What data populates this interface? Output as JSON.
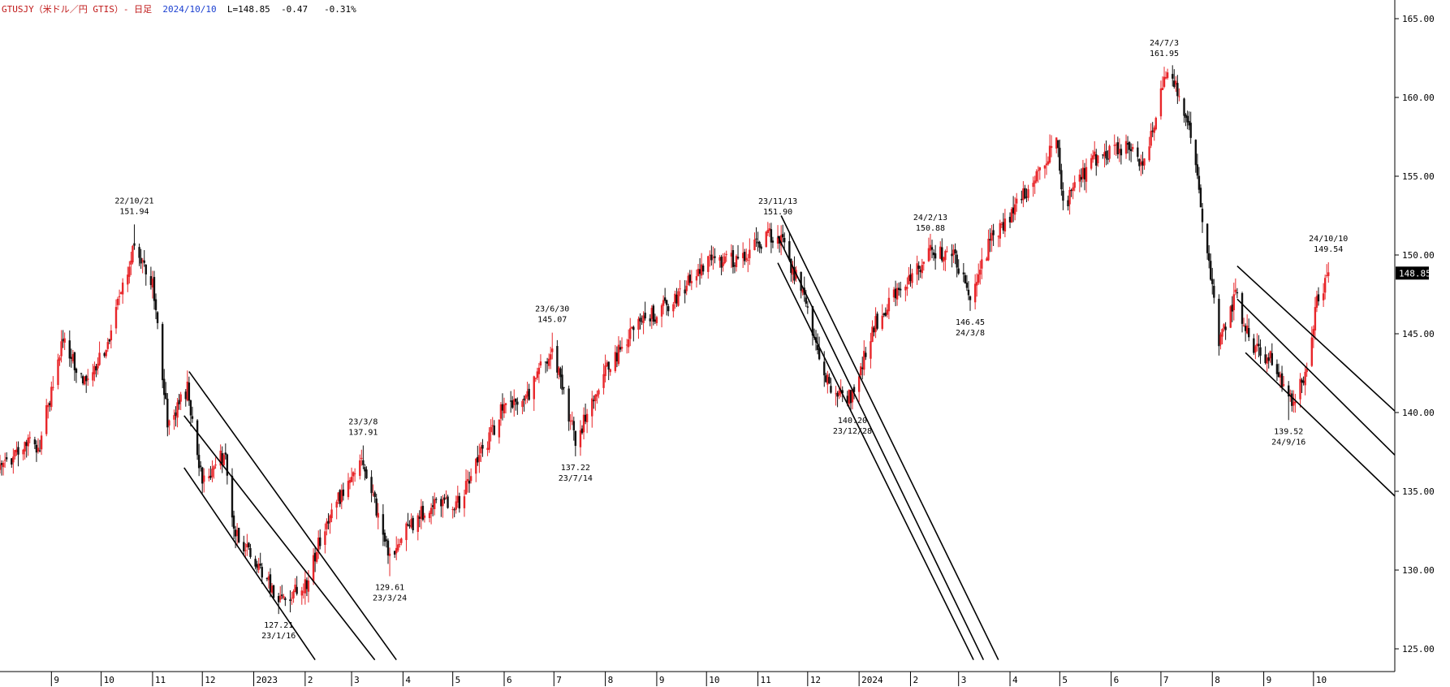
{
  "header": {
    "symbol": "GTUSJY（米ドル／円 GTIS）- 日足",
    "date": "2024/10/10",
    "last": "L=148.85",
    "change": "-0.47",
    "change_pct": "-0.31%"
  },
  "colors": {
    "up_candle": "#e8262a",
    "down_candle": "#111111",
    "trendline": "#000000",
    "axis": "#000000",
    "price_tag_bg": "#000000",
    "price_tag_fg": "#ffffff"
  },
  "chart_data": {
    "type": "candlestick",
    "title": "",
    "xlabel": "",
    "ylabel": "",
    "ylim": [
      124.5,
      166.5
    ],
    "y_ticks": [
      "165.00",
      "160.00",
      "155.00",
      "150.00",
      "145.00",
      "140.00",
      "135.00",
      "130.00",
      "125.00"
    ],
    "x_ticks": [
      "9",
      "10",
      "11",
      "12",
      "2023",
      "2",
      "3",
      "4",
      "5",
      "6",
      "7",
      "8",
      "9",
      "10",
      "11",
      "12",
      "2024",
      "2",
      "3",
      "4",
      "5",
      "6",
      "7",
      "8",
      "9",
      "10"
    ],
    "x_tick_dates": [
      "2022-09-01",
      "2022-10-01",
      "2022-11-01",
      "2022-12-01",
      "2023-01-01",
      "2023-02-01",
      "2023-03-01",
      "2023-04-01",
      "2023-05-01",
      "2023-06-01",
      "2023-07-01",
      "2023-08-01",
      "2023-09-01",
      "2023-10-01",
      "2023-11-01",
      "2023-12-01",
      "2024-01-01",
      "2024-02-01",
      "2024-03-01",
      "2024-04-01",
      "2024-05-01",
      "2024-06-01",
      "2024-07-01",
      "2024-08-01",
      "2024-09-01",
      "2024-10-01"
    ],
    "last_price_label": "148.85",
    "last_price": 148.85,
    "anchors": [
      {
        "date": "2022-08-01",
        "value": 136.5
      },
      {
        "date": "2022-08-15",
        "value": 137.8
      },
      {
        "date": "2022-08-25",
        "value": 138.0
      },
      {
        "date": "2022-09-07",
        "value": 144.5
      },
      {
        "date": "2022-09-22",
        "value": 142.0
      },
      {
        "date": "2022-10-05",
        "value": 144.5
      },
      {
        "date": "2022-10-21",
        "value": 150.5
      },
      {
        "date": "2022-11-01",
        "value": 148.0
      },
      {
        "date": "2022-11-10",
        "value": 139.5
      },
      {
        "date": "2022-11-22",
        "value": 141.5
      },
      {
        "date": "2022-12-01",
        "value": 135.5
      },
      {
        "date": "2022-12-15",
        "value": 137.5
      },
      {
        "date": "2022-12-20",
        "value": 132.5
      },
      {
        "date": "2023-01-03",
        "value": 130.5
      },
      {
        "date": "2023-01-16",
        "value": 128.2
      },
      {
        "date": "2023-02-01",
        "value": 129.0
      },
      {
        "date": "2023-02-15",
        "value": 133.5
      },
      {
        "date": "2023-03-08",
        "value": 137.0
      },
      {
        "date": "2023-03-24",
        "value": 130.5
      },
      {
        "date": "2023-04-03",
        "value": 132.5
      },
      {
        "date": "2023-04-20",
        "value": 134.5
      },
      {
        "date": "2023-05-03",
        "value": 134.0
      },
      {
        "date": "2023-05-30",
        "value": 140.0
      },
      {
        "date": "2023-06-15",
        "value": 141.0
      },
      {
        "date": "2023-06-30",
        "value": 144.3
      },
      {
        "date": "2023-07-14",
        "value": 138.2
      },
      {
        "date": "2023-08-01",
        "value": 142.5
      },
      {
        "date": "2023-08-20",
        "value": 145.5
      },
      {
        "date": "2023-09-10",
        "value": 147.0
      },
      {
        "date": "2023-10-02",
        "value": 149.5
      },
      {
        "date": "2023-10-20",
        "value": 149.8
      },
      {
        "date": "2023-11-13",
        "value": 151.5
      },
      {
        "date": "2023-11-28",
        "value": 147.5
      },
      {
        "date": "2023-12-14",
        "value": 141.5
      },
      {
        "date": "2023-12-28",
        "value": 141.0
      },
      {
        "date": "2024-01-10",
        "value": 145.5
      },
      {
        "date": "2024-01-25",
        "value": 147.8
      },
      {
        "date": "2024-02-13",
        "value": 150.2
      },
      {
        "date": "2024-02-28",
        "value": 150.0
      },
      {
        "date": "2024-03-08",
        "value": 147.0
      },
      {
        "date": "2024-03-20",
        "value": 151.0
      },
      {
        "date": "2024-04-15",
        "value": 154.5
      },
      {
        "date": "2024-04-29",
        "value": 157.5
      },
      {
        "date": "2024-05-03",
        "value": 153.0
      },
      {
        "date": "2024-05-20",
        "value": 156.0
      },
      {
        "date": "2024-06-10",
        "value": 157.0
      },
      {
        "date": "2024-06-20",
        "value": 155.5
      },
      {
        "date": "2024-07-03",
        "value": 161.3
      },
      {
        "date": "2024-07-11",
        "value": 160.5
      },
      {
        "date": "2024-07-20",
        "value": 157.0
      },
      {
        "date": "2024-08-05",
        "value": 144.5
      },
      {
        "date": "2024-08-15",
        "value": 147.5
      },
      {
        "date": "2024-08-25",
        "value": 144.0
      },
      {
        "date": "2024-09-05",
        "value": 143.5
      },
      {
        "date": "2024-09-16",
        "value": 140.5
      },
      {
        "date": "2024-09-27",
        "value": 142.5
      },
      {
        "date": "2024-10-03",
        "value": 147.0
      },
      {
        "date": "2024-10-10",
        "value": 148.85
      }
    ],
    "extremes": [
      {
        "date": "2022-10-21",
        "value": 151.94,
        "label_date": "22/10/21",
        "label_value": "151.94",
        "pos": "above"
      },
      {
        "date": "2023-01-16",
        "value": 127.21,
        "label_date": "23/1/16",
        "label_value": "127.21",
        "pos": "below"
      },
      {
        "date": "2023-03-08",
        "value": 137.91,
        "label_date": "23/3/8",
        "label_value": "137.91",
        "pos": "above"
      },
      {
        "date": "2023-03-24",
        "value": 129.61,
        "label_date": "23/3/24",
        "label_value": "129.61",
        "pos": "below"
      },
      {
        "date": "2023-06-30",
        "value": 145.07,
        "label_date": "23/6/30",
        "label_value": "145.07",
        "pos": "above"
      },
      {
        "date": "2023-07-14",
        "value": 137.22,
        "label_date": "23/7/14",
        "label_value": "137.22",
        "pos": "below"
      },
      {
        "date": "2023-11-13",
        "value": 151.9,
        "label_date": "23/11/13",
        "label_value": "151.90",
        "pos": "above"
      },
      {
        "date": "2023-12-28",
        "value": 140.2,
        "label_date": "23/12/28",
        "label_value": "140.20",
        "pos": "below"
      },
      {
        "date": "2024-02-13",
        "value": 150.88,
        "label_date": "24/2/13",
        "label_value": "150.88",
        "pos": "above"
      },
      {
        "date": "2024-03-08",
        "value": 146.45,
        "label_date": "24/3/8",
        "label_value": "146.45",
        "pos": "below"
      },
      {
        "date": "2024-07-03",
        "value": 161.95,
        "label_date": "24/7/3",
        "label_value": "161.95",
        "pos": "above"
      },
      {
        "date": "2024-09-16",
        "value": 139.52,
        "label_date": "24/9/16",
        "label_value": "139.52",
        "pos": "below"
      },
      {
        "date": "2024-10-10",
        "value": 149.54,
        "label_date": "24/10/10",
        "label_value": "149.54",
        "pos": "above"
      }
    ],
    "channels": [
      {
        "lines": [
          {
            "x1": "2022-11-23",
            "y1": 142.6,
            "x2": "2023-03-28",
            "y2": 124.3
          },
          {
            "x1": "2022-11-20",
            "y1": 139.8,
            "x2": "2023-03-15",
            "y2": 124.3
          },
          {
            "x1": "2022-11-20",
            "y1": 136.5,
            "x2": "2023-02-07",
            "y2": 124.3
          }
        ]
      },
      {
        "lines": [
          {
            "x1": "2023-11-15",
            "y1": 152.5,
            "x2": "2024-03-25",
            "y2": 124.3
          },
          {
            "x1": "2023-11-13",
            "y1": 151.2,
            "x2": "2024-03-16",
            "y2": 124.3
          },
          {
            "x1": "2023-11-13",
            "y1": 149.5,
            "x2": "2024-03-10",
            "y2": 124.3
          }
        ]
      },
      {
        "lines": [
          {
            "x1": "2024-08-16",
            "y1": 149.3,
            "x2": "2024-11-20",
            "y2": 140.0
          },
          {
            "x1": "2024-08-16",
            "y1": 147.2,
            "x2": "2024-11-20",
            "y2": 137.2
          },
          {
            "x1": "2024-08-21",
            "y1": 143.8,
            "x2": "2024-11-20",
            "y2": 134.6
          }
        ]
      }
    ]
  }
}
